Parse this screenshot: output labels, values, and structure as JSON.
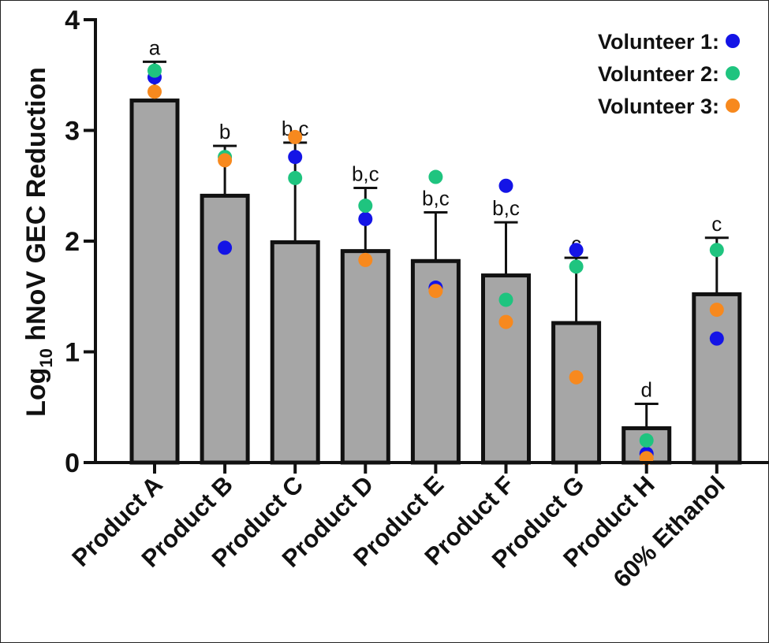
{
  "chart_data": {
    "type": "bar",
    "ylabel_main": "Log",
    "ylabel_sub": "10",
    "ylabel_rest": " hNoV  GEC Reduction",
    "ylim": [
      0,
      4
    ],
    "yticks": [
      "0",
      "1",
      "2",
      "3",
      "4"
    ],
    "categories": [
      "Product A",
      "Product B",
      "Product C",
      "Product D",
      "Product E",
      "Product F",
      "Product G",
      "Product H",
      "60% Ethanol"
    ],
    "values": [
      3.27,
      2.41,
      1.99,
      1.91,
      1.82,
      1.69,
      1.26,
      0.31,
      1.52
    ],
    "error_upper": [
      3.62,
      2.86,
      2.89,
      2.48,
      2.26,
      2.17,
      1.85,
      0.53,
      2.03
    ],
    "letters": [
      "a",
      "b",
      "b,c",
      "b,c",
      "b,c",
      "b,c",
      "c",
      "d",
      "c"
    ],
    "series": [
      {
        "name": "Volunteer 1:",
        "color": "#1414e6",
        "values": [
          3.48,
          1.94,
          2.76,
          2.2,
          1.58,
          2.5,
          1.92,
          0.08,
          1.12
        ]
      },
      {
        "name": "Volunteer 2:",
        "color": "#1fc47f",
        "values": [
          3.54,
          2.76,
          2.57,
          2.32,
          2.58,
          1.47,
          1.77,
          0.2,
          1.92
        ]
      },
      {
        "name": "Volunteer 3:",
        "color": "#f7891e",
        "values": [
          3.35,
          2.73,
          2.94,
          1.83,
          1.55,
          1.27,
          0.77,
          0.04,
          1.38
        ]
      }
    ],
    "legend_position": "top-right",
    "grid": false,
    "colors": {
      "bar_fill": "#a6a6a6",
      "bar_stroke": "#111111"
    }
  }
}
